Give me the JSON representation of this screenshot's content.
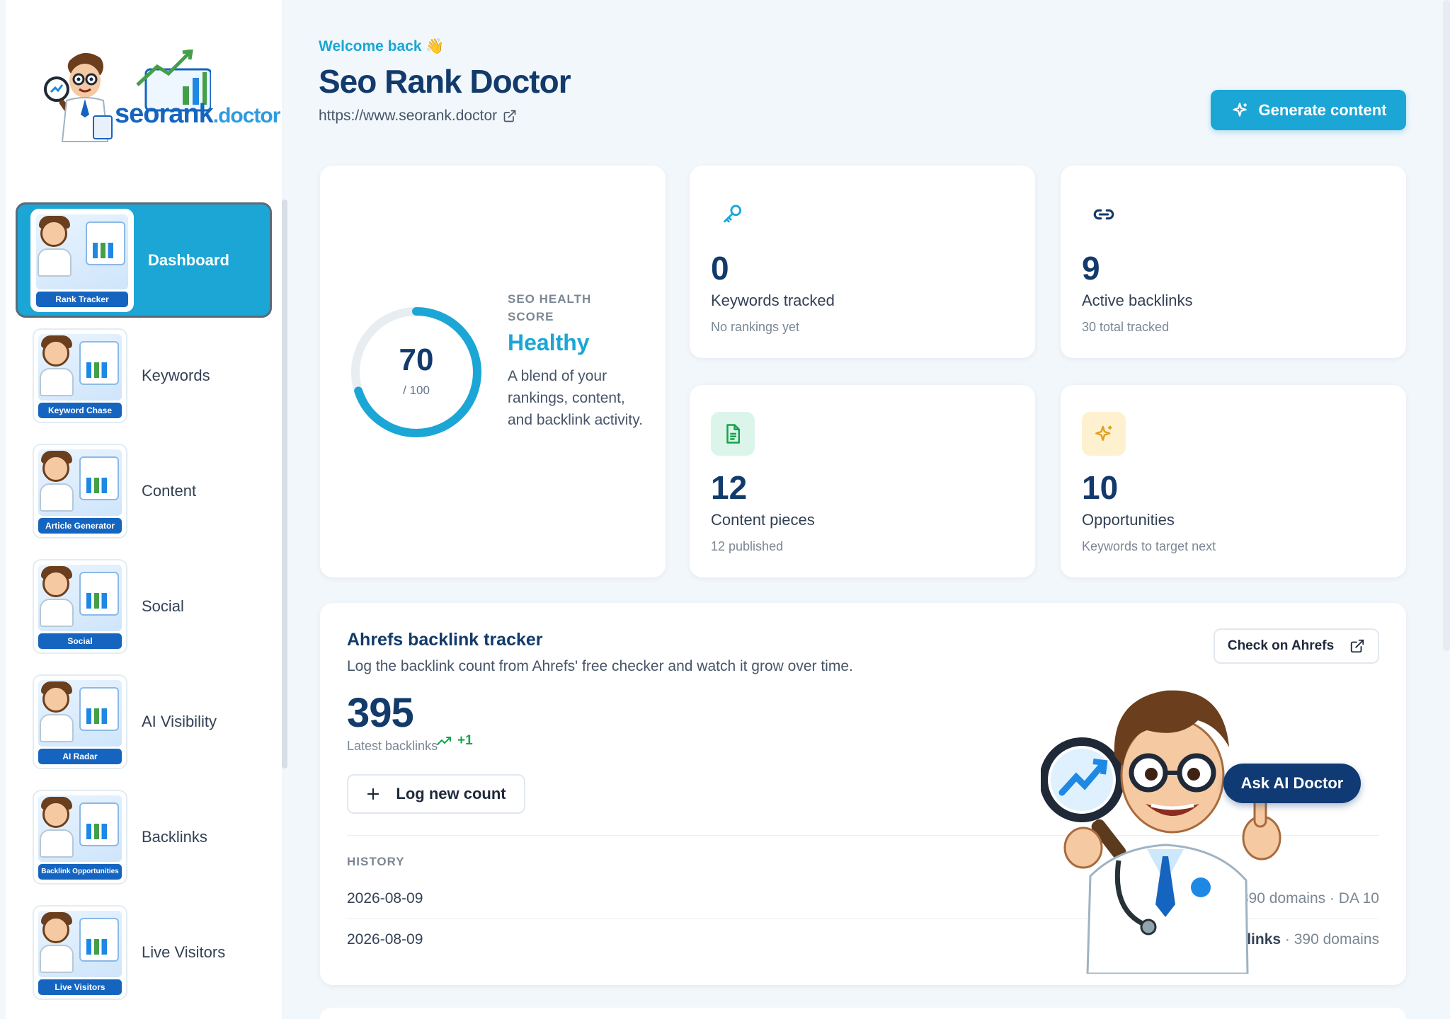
{
  "sidebar": {
    "logo": {
      "word": "seorank",
      "suffix": ".doctor"
    },
    "items": [
      {
        "label": "Dashboard",
        "thumb_caption": "Rank Tracker",
        "active": true
      },
      {
        "label": "Keywords",
        "thumb_caption": "Keyword Chase",
        "active": false
      },
      {
        "label": "Content",
        "thumb_caption": "Article Generator",
        "active": false
      },
      {
        "label": "Social",
        "thumb_caption": "Social",
        "active": false
      },
      {
        "label": "AI Visibility",
        "thumb_caption": "AI Radar",
        "active": false
      },
      {
        "label": "Backlinks",
        "thumb_caption": "Backlink Opportunities",
        "active": false
      },
      {
        "label": "Live Visitors",
        "thumb_caption": "Live Visitors",
        "active": false
      }
    ]
  },
  "header": {
    "welcome": "Welcome back 👋",
    "title": "Seo Rank Doctor",
    "url": "https://www.seorank.doctor",
    "generate_label": "Generate content"
  },
  "health": {
    "label": "SEO HEALTH SCORE",
    "score": 70,
    "max": 100,
    "score_text": "70",
    "max_text": "/ 100",
    "status": "Healthy",
    "description": "A blend of your rankings, content, and backlink activity."
  },
  "stats": [
    {
      "icon": "key-icon",
      "value": "0",
      "label": "Keywords tracked",
      "sub": "No rankings yet"
    },
    {
      "icon": "link-icon",
      "value": "9",
      "label": "Active backlinks",
      "sub": "30 total tracked"
    },
    {
      "icon": "document-icon",
      "value": "12",
      "label": "Content pieces",
      "sub": "12 published"
    },
    {
      "icon": "sparkle-icon",
      "value": "10",
      "label": "Opportunities",
      "sub": "Keywords to target next"
    }
  ],
  "ahrefs": {
    "title": "Ahrefs backlink tracker",
    "description": "Log the backlink count from Ahrefs' free checker and watch it grow over time.",
    "check_label": "Check on Ahrefs",
    "latest_value": "395",
    "latest_label": "Latest backlinks",
    "delta": "+1",
    "log_label": "Log new count",
    "history_label": "HISTORY",
    "history": [
      {
        "date": "2026-08-09",
        "visible_value": "39",
        "details": "· 390 domains · DA 10"
      },
      {
        "date": "2026-08-09",
        "visible_value": "cklinks",
        "details": "· 390 domains"
      }
    ]
  },
  "assistant": {
    "ask_label": "Ask AI Doctor"
  },
  "colors": {
    "accent": "#1ba6d6",
    "navy": "#123a6b",
    "success": "#16a34a",
    "doc_bg": "#dcf5ea",
    "sparkle_bg": "#fdf1cf"
  }
}
